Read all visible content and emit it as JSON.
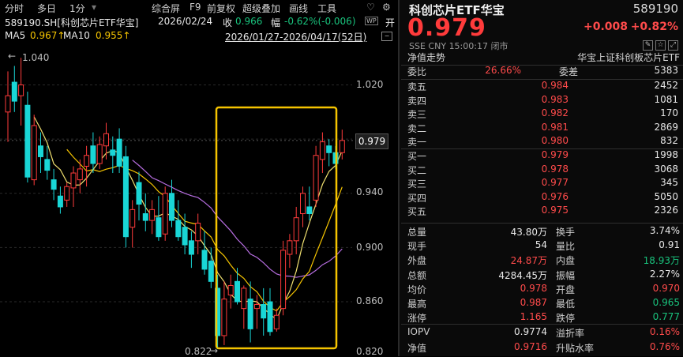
{
  "toolbar": {
    "items": [
      "分时",
      "多日",
      "1分",
      "综合屏",
      "F9",
      "前复权",
      "超级叠加",
      "画线",
      "工具"
    ],
    "heart_icon": "heart-icon",
    "gear_icon": "gear-icon"
  },
  "info": {
    "symbol": "589190.SH[科创芯片ETF华宝]",
    "date": "2026/02/24",
    "close_label": "收",
    "close_value": "0.966",
    "change_label": "幅",
    "change_value": "-0.62%(-0.006)",
    "wp_badge": "WP",
    "open_badge": "开"
  },
  "ma": {
    "ma5_label": "MA5",
    "ma5_value": "0.967↑",
    "ma10_label": "MA10",
    "ma10_value": "0.955↑",
    "range": "2026/01/27-2026/04/17(52日)"
  },
  "axis": {
    "ticks": [
      "1.020",
      "0.979",
      "0.940",
      "0.900",
      "0.860",
      "0.820"
    ],
    "high_label": "1.040",
    "low_label": "0.822",
    "current_tag": "0.979"
  },
  "colors": {
    "up": "#ff3b3b",
    "down": "#19d6d6",
    "ma5": "#f0e070",
    "ma10": "#f5c400",
    "ma20": "#b66de0",
    "highlight": "#f5c400"
  },
  "quote": {
    "title": "科创芯片ETF华宝",
    "code": "589190",
    "price": "0.979",
    "change": "+0.008",
    "change_pct": "+0.82%",
    "exchange": "SSE",
    "currency": "CNY",
    "time": "15:00:17",
    "status": "闭市",
    "nav_label": "净值走势",
    "index_name": "华宝上证科创板芯片ETF"
  },
  "ratio": {
    "wb_label": "委比",
    "wb_value": "26.66%",
    "wc_label": "委差",
    "wc_value": "5383"
  },
  "asks": [
    {
      "label": "卖五",
      "price": "0.984",
      "qty": "2452"
    },
    {
      "label": "卖四",
      "price": "0.983",
      "qty": "1081"
    },
    {
      "label": "卖三",
      "price": "0.982",
      "qty": "170"
    },
    {
      "label": "卖二",
      "price": "0.981",
      "qty": "2869"
    },
    {
      "label": "卖一",
      "price": "0.980",
      "qty": "832"
    }
  ],
  "bids": [
    {
      "label": "买一",
      "price": "0.979",
      "qty": "1998"
    },
    {
      "label": "买二",
      "price": "0.978",
      "qty": "3068"
    },
    {
      "label": "买三",
      "price": "0.977",
      "qty": "345"
    },
    {
      "label": "买四",
      "price": "0.976",
      "qty": "5050"
    },
    {
      "label": "买五",
      "price": "0.975",
      "qty": "2326"
    }
  ],
  "stats": [
    {
      "a": "总量",
      "b": "43.80万",
      "bc": "white",
      "c": "换手",
      "d": "3.74%",
      "dc": "white"
    },
    {
      "a": "现手",
      "b": "54",
      "bc": "white",
      "c": "量比",
      "d": "0.91",
      "dc": "white"
    },
    {
      "a": "外盘",
      "b": "24.87万",
      "bc": "red",
      "c": "内盘",
      "d": "18.93万",
      "dc": "green"
    },
    {
      "a": "总额",
      "b": "4284.45万",
      "bc": "white",
      "c": "振幅",
      "d": "2.27%",
      "dc": "white"
    },
    {
      "a": "均价",
      "b": "0.978",
      "bc": "red",
      "c": "开盘",
      "d": "0.970",
      "dc": "red"
    },
    {
      "a": "最高",
      "b": "0.987",
      "bc": "red",
      "c": "最低",
      "d": "0.965",
      "dc": "green"
    },
    {
      "a": "涨停",
      "b": "1.165",
      "bc": "red",
      "c": "跌停",
      "d": "0.777",
      "dc": "green"
    }
  ],
  "stats2": [
    {
      "a": "IOPV",
      "b": "0.9774",
      "bc": "white",
      "c": "溢折率",
      "d": "0.16%",
      "dc": "red"
    },
    {
      "a": "净值",
      "b": "0.9716",
      "bc": "red",
      "c": "升贴水率",
      "d": "0.76%",
      "dc": "red"
    }
  ]
}
